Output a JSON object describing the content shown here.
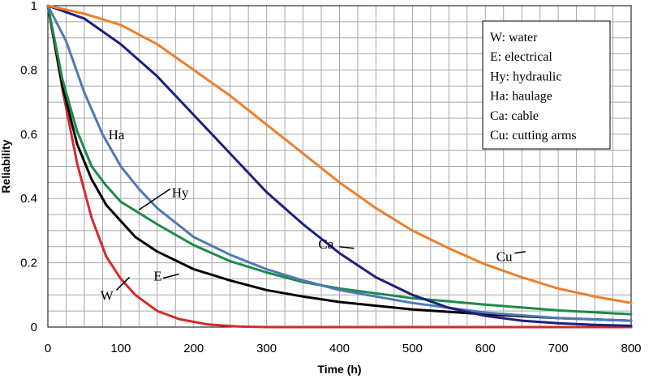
{
  "chart_data": {
    "type": "line",
    "title": "",
    "xlabel": "Time (h)",
    "ylabel": "Reliability",
    "xlim": [
      0,
      800
    ],
    "ylim": [
      0,
      1
    ],
    "x_ticks": [
      "0",
      "100",
      "200",
      "300",
      "400",
      "500",
      "600",
      "700",
      "800"
    ],
    "y_ticks": [
      "0",
      "0.2",
      "0.4",
      "0.6",
      "0.8",
      "1"
    ],
    "grid": true,
    "legend_position": "top-right",
    "legend": [
      "W: water",
      "E: electrical",
      "Hy: hydraulic",
      "Ha: haulage",
      "Ca: cable",
      "Cu: cutting arms"
    ],
    "series": [
      {
        "label": "W",
        "color": "#d42a2a",
        "x": [
          0,
          20,
          40,
          60,
          80,
          100,
          120,
          150,
          180,
          220,
          260,
          300,
          400,
          500,
          600,
          700,
          800
        ],
        "y": [
          1.0,
          0.74,
          0.51,
          0.34,
          0.22,
          0.15,
          0.1,
          0.05,
          0.025,
          0.008,
          0.002,
          0.0,
          0.0,
          0.0,
          0.0,
          0.0,
          0.0
        ]
      },
      {
        "label": "E",
        "color": "#000000",
        "x": [
          0,
          20,
          40,
          60,
          80,
          100,
          120,
          150,
          200,
          250,
          300,
          350,
          400,
          500,
          600,
          700,
          800
        ],
        "y": [
          1.0,
          0.75,
          0.57,
          0.46,
          0.38,
          0.33,
          0.28,
          0.235,
          0.18,
          0.145,
          0.115,
          0.095,
          0.078,
          0.055,
          0.04,
          0.028,
          0.02
        ]
      },
      {
        "label": "Hy",
        "color": "#1e8a4a",
        "x": [
          0,
          20,
          40,
          60,
          80,
          100,
          150,
          200,
          250,
          300,
          350,
          400,
          500,
          600,
          700,
          800
        ],
        "y": [
          1.0,
          0.77,
          0.61,
          0.5,
          0.44,
          0.39,
          0.32,
          0.255,
          0.205,
          0.17,
          0.14,
          0.12,
          0.09,
          0.07,
          0.052,
          0.04
        ]
      },
      {
        "label": "Ha",
        "color": "#4f79b4",
        "x": [
          0,
          25,
          50,
          75,
          100,
          125,
          150,
          200,
          250,
          300,
          350,
          400,
          500,
          600,
          700,
          800
        ],
        "y": [
          1.0,
          0.89,
          0.73,
          0.6,
          0.5,
          0.43,
          0.37,
          0.28,
          0.225,
          0.18,
          0.145,
          0.115,
          0.075,
          0.045,
          0.028,
          0.02
        ]
      },
      {
        "label": "Ca",
        "color": "#1e1f7e",
        "x": [
          0,
          50,
          100,
          150,
          200,
          250,
          300,
          350,
          400,
          450,
          500,
          550,
          600,
          650,
          700,
          750,
          800
        ],
        "y": [
          1.0,
          0.96,
          0.88,
          0.78,
          0.66,
          0.54,
          0.42,
          0.32,
          0.23,
          0.155,
          0.1,
          0.06,
          0.035,
          0.02,
          0.012,
          0.007,
          0.004
        ]
      },
      {
        "label": "Cu",
        "color": "#ec7f2c",
        "x": [
          0,
          50,
          100,
          150,
          200,
          250,
          300,
          350,
          400,
          450,
          500,
          550,
          600,
          650,
          700,
          750,
          800
        ],
        "y": [
          1.0,
          0.975,
          0.94,
          0.88,
          0.8,
          0.72,
          0.63,
          0.54,
          0.45,
          0.37,
          0.3,
          0.245,
          0.195,
          0.155,
          0.12,
          0.095,
          0.075
        ]
      }
    ]
  }
}
